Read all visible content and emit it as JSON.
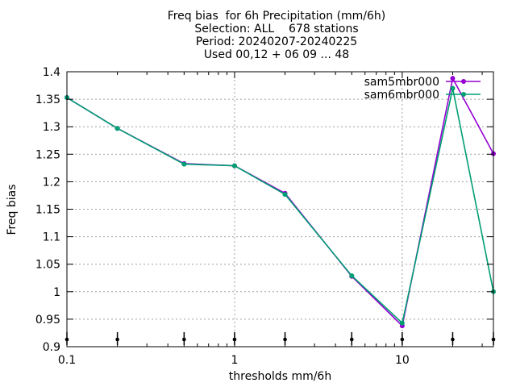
{
  "chart_data": {
    "type": "line",
    "title_lines": [
      "Freq bias  for 6h Precipitation (mm/6h)",
      "Selection: ALL    678 stations",
      "Period: 20240207-20240225",
      "Used 00,12 + 06 09 ... 48"
    ],
    "xlabel": "thresholds mm/6h",
    "ylabel": "Freq bias",
    "x_scale": "log",
    "xlim": [
      0.1,
      35
    ],
    "ylim": [
      0.9,
      1.4
    ],
    "x_ticks": [
      0.1,
      1,
      10
    ],
    "x_tick_labels": [
      "0.1",
      "1",
      "10"
    ],
    "y_ticks": [
      0.9,
      0.95,
      1.0,
      1.05,
      1.1,
      1.15,
      1.2,
      1.25,
      1.3,
      1.35,
      1.4
    ],
    "y_tick_labels": [
      "0.9",
      "0.95",
      "1",
      "1.05",
      "1.1",
      "1.15",
      "1.2",
      "1.25",
      "1.3",
      "1.35",
      "1.4"
    ],
    "grid": true,
    "legend_position": "top-right",
    "x": [
      0.1,
      0.2,
      0.5,
      1,
      2,
      5,
      10,
      20,
      35
    ],
    "series": [
      {
        "name": "sam5mbr000",
        "color": "#9400d3",
        "values": [
          1.353,
          1.297,
          1.233,
          1.229,
          1.179,
          1.028,
          0.938,
          1.388,
          1.251
        ]
      },
      {
        "name": "sam6mbr000",
        "color": "#009e73",
        "values": [
          1.353,
          1.297,
          1.232,
          1.229,
          1.177,
          1.029,
          0.943,
          1.37,
          1.0
        ]
      }
    ],
    "threshold_markers_x": [
      0.1,
      0.2,
      0.5,
      1,
      2,
      5,
      10,
      20,
      35
    ]
  }
}
